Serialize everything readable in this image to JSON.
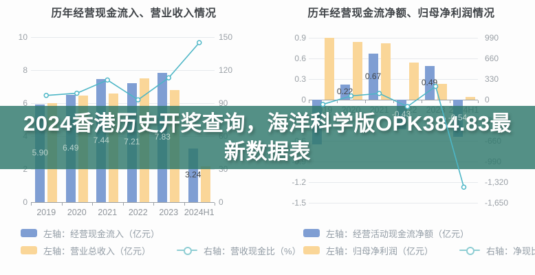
{
  "banner": {
    "text": "2024香港历史开奖查询，海洋科学版OPK384.83最新数据表",
    "bg_color": "#2E786B",
    "text_color": "#ffffff"
  },
  "colors": {
    "bar_blue": "#7F9ED3",
    "bar_yellow": "#FAD698",
    "line_teal": "#4DB6C6",
    "axis_text": "#9aa0a6",
    "title_text": "#3f4347",
    "label_dark": "#3f4347",
    "label_light": "#b9d2cb"
  },
  "chart_data": [
    {
      "type": "bar+line",
      "title": "历年经营现金流入、营业收入情况",
      "categories": [
        "2019",
        "2020",
        "2021",
        "2022",
        "2023",
        "2024H1"
      ],
      "series": [
        {
          "name": "左轴：经营现金流入（亿元）",
          "type": "bar",
          "axis": "left",
          "color_key": "bar_blue",
          "values": [
            5.9,
            6.49,
            7.44,
            7.21,
            7.83,
            3.24
          ],
          "data_labels": [
            "5.90",
            "6.49",
            "7.44",
            "7.21",
            "7.83",
            "3.24"
          ]
        },
        {
          "name": "左轴：营业总收入（亿元）",
          "type": "bar",
          "axis": "left",
          "color_key": "bar_yellow",
          "values": [
            6.02,
            6.45,
            6.6,
            7.5,
            6.8,
            2.15
          ],
          "data_labels": [
            null,
            null,
            null,
            null,
            null,
            null
          ]
        },
        {
          "name": "右轴：营收现金比（%）",
          "type": "line",
          "axis": "right",
          "color_key": "line_teal",
          "values": [
            97,
            99,
            111,
            93,
            113,
            145
          ],
          "data_labels": [
            null,
            null,
            null,
            null,
            null,
            null
          ]
        }
      ],
      "left_axis": {
        "min": 0,
        "max": 10,
        "ticks": [
          "10",
          "8",
          "6",
          "4",
          "2",
          "0"
        ]
      },
      "right_axis": {
        "min": 0,
        "max": 150,
        "ticks": [
          "150",
          "120",
          "90",
          "60",
          "30",
          "0"
        ]
      },
      "grid": true,
      "legend_position": "bottom-left"
    },
    {
      "type": "bar+line",
      "title": "历年经营现金流净额、归母净利润情况",
      "categories": [
        "2019",
        "2020",
        "2021",
        "2022",
        "2023",
        "2024H1"
      ],
      "series": [
        {
          "name": "左轴：经营活动现金流净额（亿元）",
          "type": "bar",
          "axis": "left",
          "color_key": "bar_blue",
          "values": [
            -0.65,
            0.22,
            0.67,
            -0.43,
            0.49,
            -0.54
          ],
          "data_labels": [
            null,
            "0.22",
            "0.67",
            "-0.43",
            "0.49",
            "-0.54"
          ]
        },
        {
          "name": "左轴：归母净利润（亿元）",
          "type": "bar",
          "axis": "left",
          "color_key": "bar_yellow",
          "values": [
            0.9,
            0.84,
            0.82,
            0.54,
            0.23,
            0.04
          ],
          "data_labels": [
            null,
            null,
            null,
            null,
            null,
            null
          ]
        },
        {
          "name": "右轴：净现比（%）",
          "type": "line",
          "axis": "right",
          "color_key": "line_teal",
          "values": [
            -75,
            60,
            100,
            -110,
            213,
            -1400
          ],
          "data_labels": [
            null,
            null,
            null,
            null,
            null,
            null
          ]
        }
      ],
      "left_axis": {
        "min": -1.5,
        "max": 0.9,
        "ticks": [
          "0.9",
          "0.6",
          "0.3",
          "0",
          "-0.3",
          "-0.6",
          "-0.9",
          "-1.2",
          "-1.5"
        ]
      },
      "right_axis": {
        "min": -1650,
        "max": 990,
        "ticks": [
          "990",
          "660",
          "330",
          "0",
          "-330",
          "-660",
          "-990",
          "-1,320",
          "-1,650"
        ]
      },
      "grid": true,
      "legend_position": "bottom-left"
    }
  ]
}
